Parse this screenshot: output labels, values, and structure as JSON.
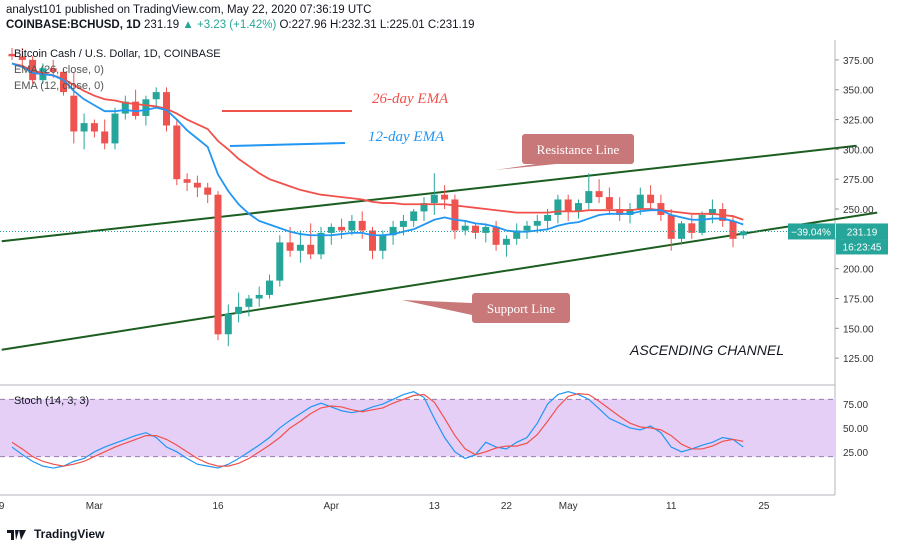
{
  "header": {
    "line1": "analyst101 published on TradingView.com, May 22, 2020 07:36:19 UTC",
    "symbol": "COINBASE:BCHUSD, 1D",
    "price": "231.19",
    "change": "▲ +3.23 (+1.42%)",
    "ohlc": "O:227.96 H:232.31 L:225.01 C:231.19"
  },
  "legend": {
    "title": "Bitcoin Cash / U.S. Dollar, 1D, COINBASE",
    "ema26": "EMA (26, close, 0)",
    "ema12": "EMA (12, close, 0)",
    "stoch": "Stoch (14, 3, 3)"
  },
  "annotations": {
    "ema26_label": "26-day EMA",
    "ema12_label": "12-day EMA",
    "resistance": "Resistance Line",
    "support": "Support Line",
    "channel": "ASCENDING CHANNEL"
  },
  "price_tag": {
    "pct": "−39.04%",
    "price": "231.19",
    "countdown": "16:23:45"
  },
  "footer": {
    "brand": "TradingView"
  },
  "colors": {
    "up": "#26a69a",
    "down": "#ef5350",
    "ema26": "#f0514b",
    "ema12": "#2196f3",
    "channel": "#1b5e20",
    "tag": "#c9787a",
    "stoch_bg": "#e6cff7"
  },
  "chart_data": {
    "type": "candlestick",
    "price_ticks": [
      125,
      150,
      175,
      200,
      225,
      250,
      275,
      300,
      325,
      350,
      375
    ],
    "price_range": [
      105,
      390
    ],
    "x_labels": [
      "9",
      "Mar",
      "16",
      "Apr",
      "13",
      "22",
      "May",
      "11",
      "25"
    ],
    "x_label_index": [
      -1,
      8,
      20,
      31,
      41,
      48,
      54,
      64,
      73
    ],
    "candles": [
      [
        380,
        385,
        375,
        378
      ],
      [
        378,
        385,
        370,
        375
      ],
      [
        375,
        378,
        355,
        358
      ],
      [
        358,
        372,
        355,
        368
      ],
      [
        368,
        375,
        360,
        365
      ],
      [
        365,
        368,
        345,
        348
      ],
      [
        345,
        365,
        305,
        315
      ],
      [
        315,
        330,
        300,
        322
      ],
      [
        322,
        325,
        310,
        315
      ],
      [
        315,
        325,
        300,
        305
      ],
      [
        305,
        335,
        300,
        330
      ],
      [
        330,
        345,
        325,
        340
      ],
      [
        340,
        350,
        325,
        328
      ],
      [
        328,
        345,
        320,
        342
      ],
      [
        342,
        352,
        335,
        348
      ],
      [
        348,
        352,
        315,
        320
      ],
      [
        320,
        325,
        270,
        275
      ],
      [
        275,
        280,
        265,
        272
      ],
      [
        272,
        278,
        260,
        268
      ],
      [
        268,
        272,
        255,
        262
      ],
      [
        262,
        265,
        140,
        145
      ],
      [
        145,
        170,
        135,
        162
      ],
      [
        162,
        180,
        155,
        168
      ],
      [
        168,
        178,
        160,
        175
      ],
      [
        175,
        185,
        168,
        178
      ],
      [
        178,
        195,
        175,
        190
      ],
      [
        190,
        228,
        185,
        222
      ],
      [
        222,
        235,
        210,
        215
      ],
      [
        215,
        232,
        205,
        220
      ],
      [
        220,
        238,
        208,
        212
      ],
      [
        212,
        235,
        208,
        230
      ],
      [
        230,
        238,
        220,
        235
      ],
      [
        235,
        242,
        225,
        232
      ],
      [
        232,
        245,
        228,
        240
      ],
      [
        240,
        248,
        225,
        232
      ],
      [
        232,
        235,
        208,
        215
      ],
      [
        215,
        232,
        208,
        228
      ],
      [
        228,
        240,
        220,
        235
      ],
      [
        235,
        245,
        228,
        240
      ],
      [
        240,
        250,
        235,
        248
      ],
      [
        248,
        260,
        240,
        255
      ],
      [
        255,
        280,
        245,
        262
      ],
      [
        262,
        270,
        250,
        258
      ],
      [
        258,
        262,
        225,
        232
      ],
      [
        232,
        240,
        228,
        236
      ],
      [
        236,
        238,
        225,
        230
      ],
      [
        230,
        238,
        222,
        235
      ],
      [
        235,
        240,
        215,
        220
      ],
      [
        220,
        228,
        210,
        225
      ],
      [
        225,
        238,
        220,
        232
      ],
      [
        232,
        240,
        225,
        236
      ],
      [
        236,
        245,
        230,
        240
      ],
      [
        240,
        250,
        232,
        245
      ],
      [
        245,
        262,
        238,
        258
      ],
      [
        258,
        262,
        240,
        248
      ],
      [
        248,
        258,
        242,
        255
      ],
      [
        255,
        280,
        250,
        265
      ],
      [
        265,
        275,
        255,
        260
      ],
      [
        260,
        268,
        245,
        250
      ],
      [
        250,
        260,
        240,
        245
      ],
      [
        245,
        255,
        238,
        250
      ],
      [
        250,
        268,
        245,
        262
      ],
      [
        262,
        270,
        250,
        255
      ],
      [
        255,
        262,
        240,
        245
      ],
      [
        245,
        250,
        215,
        225
      ],
      [
        225,
        240,
        220,
        238
      ],
      [
        238,
        245,
        225,
        230
      ],
      [
        230,
        248,
        228,
        245
      ],
      [
        245,
        258,
        238,
        250
      ],
      [
        250,
        255,
        235,
        240
      ],
      [
        240,
        245,
        218,
        225
      ],
      [
        227.96,
        232.31,
        225.01,
        231.19
      ]
    ],
    "ema26": [
      372,
      370,
      366,
      364,
      362,
      359,
      354,
      349,
      345,
      342,
      341,
      339,
      338,
      337,
      336,
      334,
      330,
      325,
      321,
      317,
      307,
      300,
      292,
      286,
      280,
      275,
      272,
      269,
      266,
      264,
      262,
      261,
      260,
      259,
      258,
      256,
      255,
      255,
      254,
      254,
      254,
      254,
      254,
      253,
      252,
      251,
      250,
      249,
      248,
      247,
      247,
      247,
      247,
      248,
      248,
      248,
      249,
      249,
      249,
      249,
      249,
      250,
      250,
      249,
      248,
      247,
      246,
      246,
      246,
      245,
      244,
      241
    ],
    "ema12": [
      372,
      369,
      364,
      363,
      362,
      358,
      349,
      342,
      337,
      332,
      332,
      333,
      332,
      333,
      335,
      333,
      325,
      316,
      309,
      302,
      279,
      265,
      254,
      246,
      240,
      237,
      234,
      231,
      229,
      228,
      228,
      228,
      229,
      230,
      230,
      228,
      228,
      229,
      231,
      233,
      237,
      241,
      243,
      241,
      240,
      238,
      237,
      235,
      232,
      231,
      231,
      232,
      233,
      236,
      238,
      239,
      242,
      245,
      246,
      246,
      246,
      248,
      249,
      249,
      245,
      243,
      241,
      241,
      242,
      242,
      240,
      237
    ],
    "stoch_k": [
      30,
      22,
      15,
      10,
      8,
      10,
      15,
      18,
      25,
      30,
      34,
      38,
      42,
      45,
      40,
      30,
      25,
      18,
      12,
      10,
      8,
      12,
      18,
      25,
      32,
      40,
      50,
      58,
      65,
      72,
      76,
      72,
      68,
      66,
      68,
      72,
      75,
      80,
      85,
      88,
      82,
      60,
      40,
      25,
      18,
      22,
      35,
      30,
      28,
      35,
      40,
      55,
      75,
      85,
      88,
      85,
      80,
      70,
      60,
      55,
      50,
      48,
      52,
      45,
      30,
      25,
      28,
      32,
      35,
      40,
      38,
      30
    ],
    "stoch_d": [
      35,
      28,
      20,
      15,
      12,
      10,
      12,
      15,
      20,
      25,
      30,
      34,
      38,
      42,
      42,
      38,
      32,
      25,
      18,
      13,
      10,
      10,
      13,
      18,
      25,
      32,
      40,
      50,
      57,
      65,
      71,
      73,
      72,
      69,
      67,
      69,
      71,
      76,
      80,
      84,
      85,
      77,
      60,
      42,
      28,
      22,
      25,
      29,
      31,
      31,
      34,
      43,
      57,
      72,
      83,
      86,
      85,
      78,
      70,
      62,
      55,
      51,
      50,
      48,
      42,
      33,
      28,
      28,
      31,
      36,
      38,
      36
    ],
    "stoch_ticks": [
      25,
      50,
      75
    ],
    "stoch_bands": [
      20,
      80
    ],
    "resistance_line": [
      [
        -1,
        223
      ],
      [
        82,
        303
      ]
    ],
    "support_line": [
      [
        -1,
        132
      ],
      [
        84,
        247
      ]
    ]
  }
}
